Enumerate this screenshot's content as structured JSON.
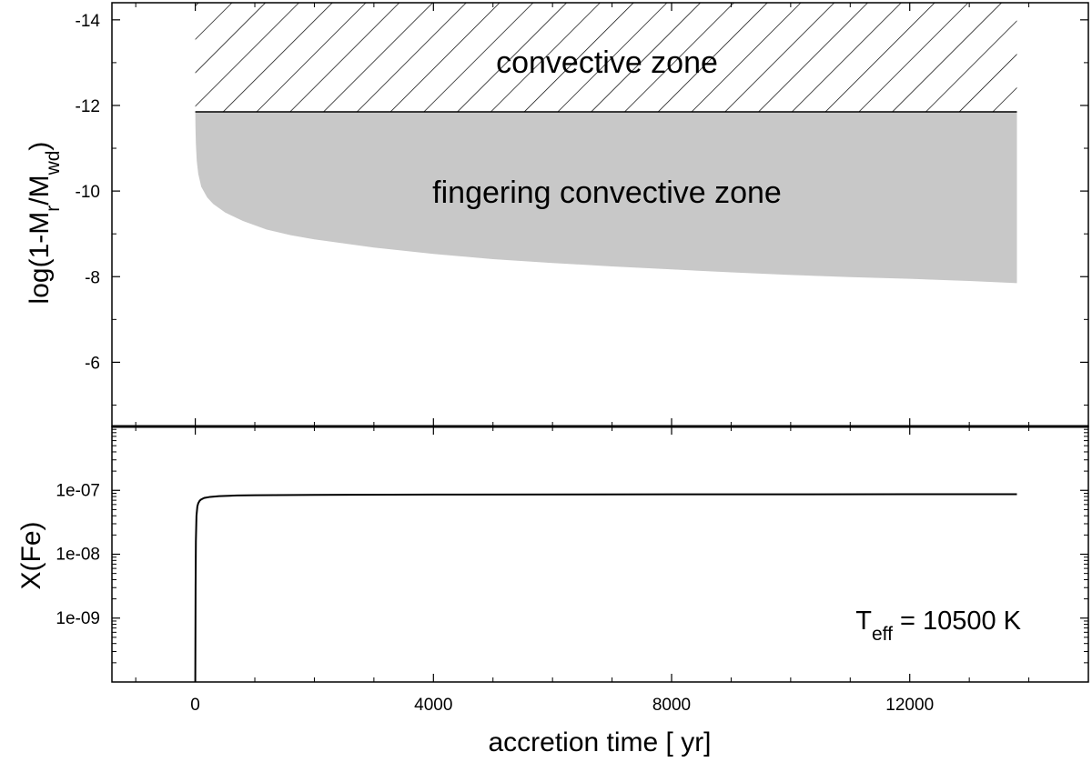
{
  "chart_data": [
    {
      "type": "area",
      "panel": "top",
      "ylabel": "log(1-M_r/M_wd)",
      "ylabel_parts": {
        "main": "log(1-M",
        "sub_r": "r",
        "slash": "/M",
        "sub_wd": "wd",
        "close": ")"
      },
      "xlim": [
        -1400,
        15000
      ],
      "ylim": [
        -4.5,
        -14.4
      ],
      "y_inverted": true,
      "yticks": [
        -14,
        -12,
        -10,
        -8,
        -6
      ],
      "ytick_labels": [
        "-14",
        "-12",
        "-10",
        "-8",
        "-6"
      ],
      "regions": [
        {
          "name": "convective zone",
          "label": "convective zone",
          "fill": "hatched",
          "x_range": [
            0,
            13800
          ],
          "y_top": -14.4,
          "y_bottom": -11.85
        },
        {
          "name": "fingering convective zone",
          "label": "fingering convective zone",
          "fill": "#c8c8c8",
          "x": [
            0,
            3,
            10,
            25,
            50,
            100,
            200,
            300,
            500,
            800,
            1200,
            1600,
            2000,
            3000,
            4000,
            5000,
            6000,
            7000,
            8000,
            9000,
            10000,
            11000,
            12000,
            13000,
            13800
          ],
          "y_top": -11.85,
          "y_bottom": [
            -11.85,
            -11.5,
            -11.1,
            -10.7,
            -10.4,
            -10.1,
            -9.85,
            -9.7,
            -9.5,
            -9.3,
            -9.1,
            -8.97,
            -8.87,
            -8.68,
            -8.53,
            -8.41,
            -8.32,
            -8.24,
            -8.17,
            -8.1,
            -8.04,
            -7.99,
            -7.95,
            -7.9,
            -7.85
          ]
        }
      ]
    },
    {
      "type": "line",
      "panel": "bottom",
      "xlabel": "accretion time [ yr]",
      "ylabel": "X(Fe)",
      "y_scale": "log",
      "xlim": [
        -1400,
        15000
      ],
      "ylim": [
        1e-10,
        1e-06
      ],
      "xticks": [
        0,
        4000,
        8000,
        12000
      ],
      "xtick_labels": [
        "0",
        "4000",
        "8000",
        "12000"
      ],
      "yticks": [
        1e-07,
        1e-08,
        1e-09
      ],
      "ytick_labels": [
        "1e-07",
        "1e-08",
        "1e-09"
      ],
      "series": [
        {
          "x": [
            0,
            5,
            10,
            20,
            35,
            50,
            75,
            100,
            150,
            250,
            400,
            700,
            1000,
            2000,
            4000,
            8000,
            12000,
            13800
          ],
          "y": [
            1e-10,
            3e-09,
            1.6e-08,
            4e-08,
            5.6e-08,
            6.3e-08,
            6.9e-08,
            7.2e-08,
            7.6e-08,
            7.9e-08,
            8.1e-08,
            8.3e-08,
            8.4e-08,
            8.5e-08,
            8.6e-08,
            8.65e-08,
            8.7e-08,
            8.7e-08
          ]
        }
      ],
      "annotation": {
        "main": "T",
        "sub": "eff",
        "rest": " = 10500 K"
      }
    }
  ]
}
